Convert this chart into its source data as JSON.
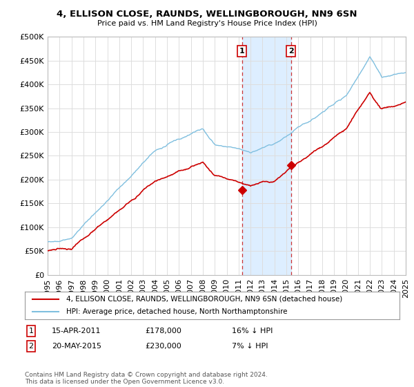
{
  "title": "4, ELLISON CLOSE, RAUNDS, WELLINGBOROUGH, NN9 6SN",
  "subtitle": "Price paid vs. HM Land Registry's House Price Index (HPI)",
  "legend_line1": "4, ELLISON CLOSE, RAUNDS, WELLINGBOROUGH, NN9 6SN (detached house)",
  "legend_line2": "HPI: Average price, detached house, North Northamptonshire",
  "annotation1_date": "15-APR-2011",
  "annotation1_price": "£178,000",
  "annotation1_hpi": "16% ↓ HPI",
  "annotation2_date": "20-MAY-2015",
  "annotation2_price": "£230,000",
  "annotation2_hpi": "7% ↓ HPI",
  "footnote": "Contains HM Land Registry data © Crown copyright and database right 2024.\nThis data is licensed under the Open Government Licence v3.0.",
  "sale1_year": 2011.29,
  "sale1_price": 178000,
  "sale2_year": 2015.38,
  "sale2_price": 230000,
  "hpi_color": "#7fbfdf",
  "price_color": "#cc0000",
  "background_color": "#ffffff",
  "grid_color": "#dddddd",
  "highlight_color": "#ddeeff",
  "vline_color": "#cc3333",
  "ylim": [
    0,
    500000
  ],
  "yticks": [
    0,
    50000,
    100000,
    150000,
    200000,
    250000,
    300000,
    350000,
    400000,
    450000,
    500000
  ],
  "xlim_start": 1995,
  "xlim_end": 2025
}
